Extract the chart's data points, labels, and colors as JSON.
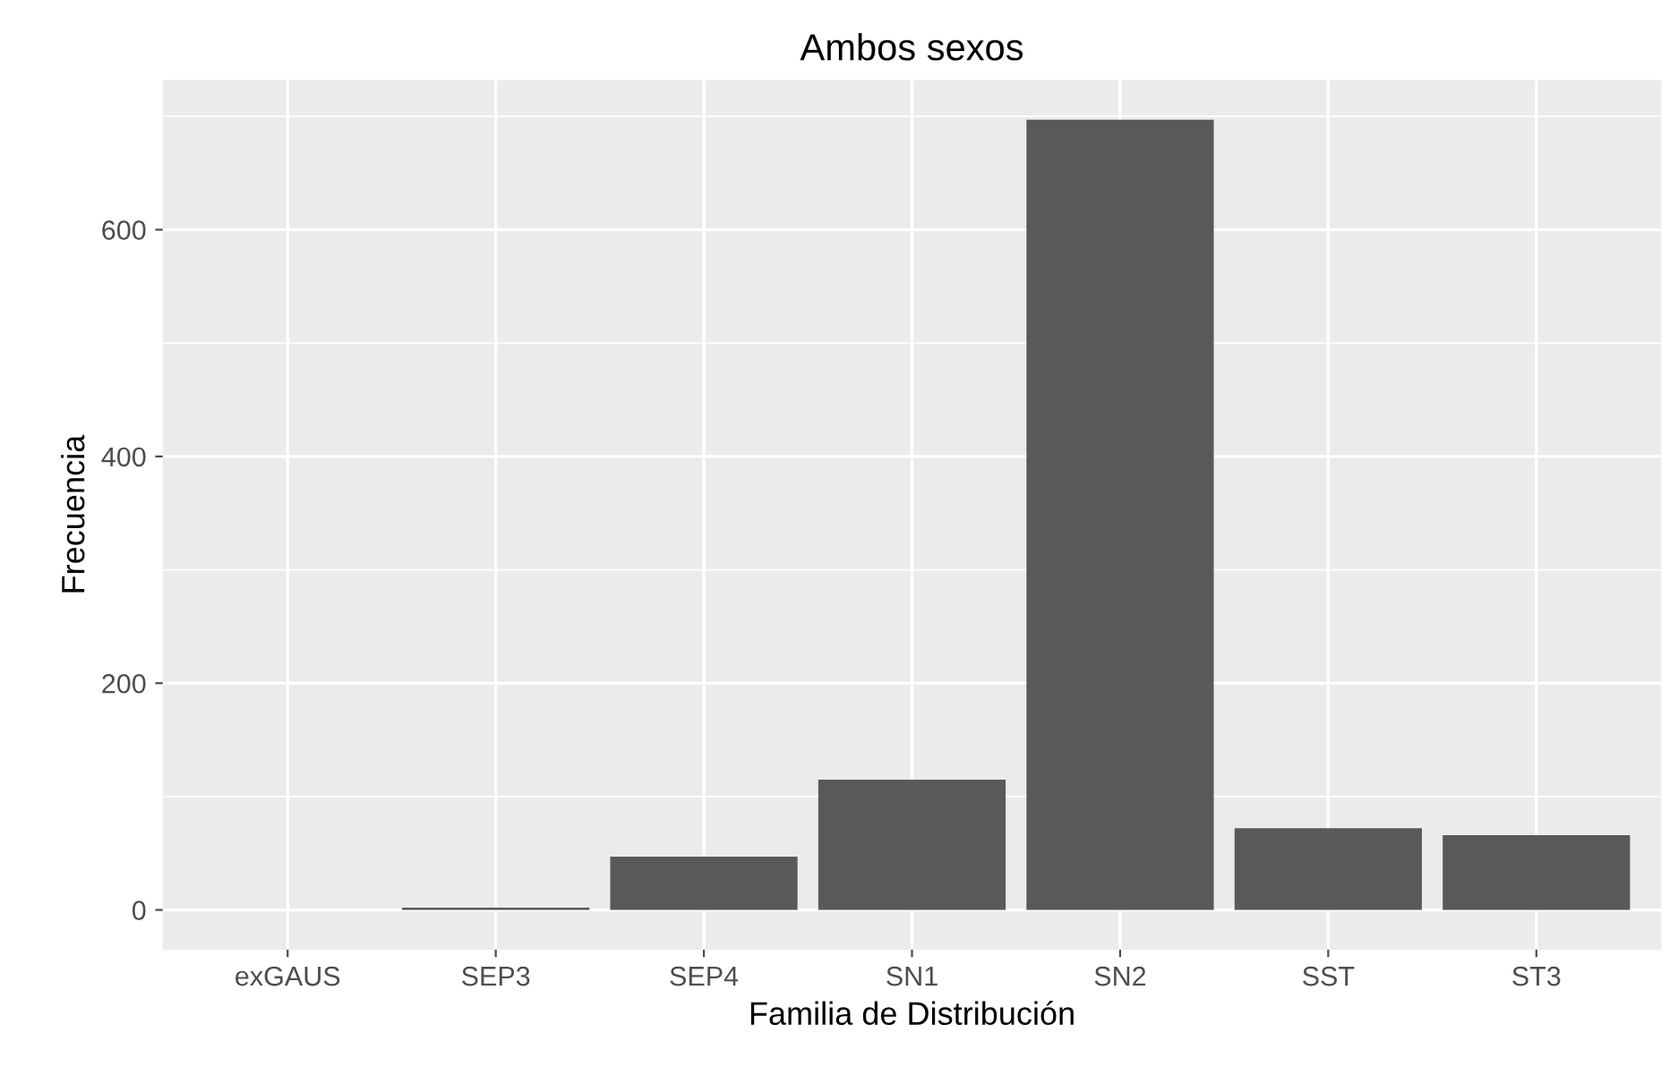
{
  "chart_data": {
    "type": "bar",
    "title": "Ambos sexos",
    "xlabel": "Familia de Distribución",
    "ylabel": "Frecuencia",
    "categories": [
      "exGAUS",
      "SEP3",
      "SEP4",
      "SN1",
      "SN2",
      "SST",
      "ST3"
    ],
    "values": [
      0,
      2,
      47,
      115,
      697,
      72,
      66
    ],
    "color": "#595959",
    "ylim": [
      -35,
      732
    ],
    "yticks": [
      0,
      200,
      400,
      600
    ],
    "grid": true
  }
}
